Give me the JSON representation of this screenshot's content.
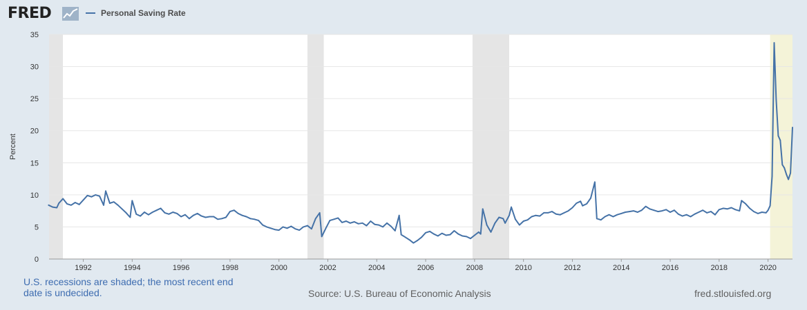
{
  "header": {
    "logo_text": "FRED",
    "logo_icon": "trend-line-icon",
    "legend_label": "Personal Saving Rate"
  },
  "footer": {
    "recession_note": "U.S. recessions are shaded; the most recent end date is undecided.",
    "source": "Source: U.S. Bureau of Economic Analysis",
    "site": "fred.stlouisfed.org"
  },
  "colors": {
    "series": "#4572a7",
    "background": "#e1e9f0",
    "plot": "#ffffff",
    "recession": "#e5e5e5",
    "recent_recession": "#f4f3d8",
    "grid": "#e6e6e6"
  },
  "chart_data": {
    "type": "line",
    "title": "",
    "xlabel": "",
    "ylabel": "Percent",
    "xlim": [
      1990.6,
      2021.0
    ],
    "ylim": [
      0,
      35
    ],
    "grid": true,
    "legend_position": "top-left",
    "x_ticks": [
      "1992",
      "1994",
      "1996",
      "1998",
      "2000",
      "2002",
      "2004",
      "2006",
      "2008",
      "2010",
      "2012",
      "2014",
      "2016",
      "2018",
      "2020"
    ],
    "y_ticks": [
      "0",
      "5",
      "10",
      "15",
      "20",
      "25",
      "30",
      "35"
    ],
    "recessions": [
      {
        "start": "1990-07",
        "end": "1991-03"
      },
      {
        "start": "2001-03",
        "end": "2001-11"
      },
      {
        "start": "2007-12",
        "end": "2009-06"
      },
      {
        "start": "2020-02",
        "end": ""
      }
    ],
    "series": [
      {
        "name": "Personal Saving Rate",
        "points": [
          [
            "1990-08",
            8.4
          ],
          [
            "1990-10",
            8.1
          ],
          [
            "1990-12",
            8.0
          ],
          [
            "1991-01",
            8.7
          ],
          [
            "1991-03",
            9.4
          ],
          [
            "1991-05",
            8.6
          ],
          [
            "1991-07",
            8.4
          ],
          [
            "1991-09",
            8.8
          ],
          [
            "1991-11",
            8.5
          ],
          [
            "1992-01",
            9.2
          ],
          [
            "1992-03",
            9.9
          ],
          [
            "1992-05",
            9.7
          ],
          [
            "1992-07",
            10.0
          ],
          [
            "1992-09",
            9.8
          ],
          [
            "1992-11",
            8.4
          ],
          [
            "1992-12",
            10.6
          ],
          [
            "1993-02",
            8.7
          ],
          [
            "1993-04",
            8.9
          ],
          [
            "1993-06",
            8.4
          ],
          [
            "1993-08",
            7.8
          ],
          [
            "1993-10",
            7.2
          ],
          [
            "1993-12",
            6.5
          ],
          [
            "1994-01",
            9.1
          ],
          [
            "1994-03",
            7.0
          ],
          [
            "1994-05",
            6.7
          ],
          [
            "1994-07",
            7.3
          ],
          [
            "1994-09",
            6.9
          ],
          [
            "1994-11",
            7.3
          ],
          [
            "1995-01",
            7.6
          ],
          [
            "1995-03",
            7.9
          ],
          [
            "1995-05",
            7.2
          ],
          [
            "1995-07",
            7.0
          ],
          [
            "1995-09",
            7.3
          ],
          [
            "1995-11",
            7.1
          ],
          [
            "1996-01",
            6.6
          ],
          [
            "1996-03",
            6.9
          ],
          [
            "1996-05",
            6.3
          ],
          [
            "1996-07",
            6.8
          ],
          [
            "1996-09",
            7.1
          ],
          [
            "1996-11",
            6.7
          ],
          [
            "1997-01",
            6.5
          ],
          [
            "1997-03",
            6.6
          ],
          [
            "1997-05",
            6.6
          ],
          [
            "1997-07",
            6.2
          ],
          [
            "1997-09",
            6.3
          ],
          [
            "1997-11",
            6.5
          ],
          [
            "1998-01",
            7.4
          ],
          [
            "1998-03",
            7.6
          ],
          [
            "1998-05",
            7.1
          ],
          [
            "1998-07",
            6.8
          ],
          [
            "1998-09",
            6.6
          ],
          [
            "1998-11",
            6.3
          ],
          [
            "1999-01",
            6.2
          ],
          [
            "1999-03",
            6.0
          ],
          [
            "1999-05",
            5.3
          ],
          [
            "1999-07",
            5.0
          ],
          [
            "1999-09",
            4.8
          ],
          [
            "1999-11",
            4.6
          ],
          [
            "2000-01",
            4.5
          ],
          [
            "2000-03",
            5.0
          ],
          [
            "2000-05",
            4.8
          ],
          [
            "2000-07",
            5.1
          ],
          [
            "2000-09",
            4.7
          ],
          [
            "2000-11",
            4.5
          ],
          [
            "2001-01",
            5.0
          ],
          [
            "2001-03",
            5.2
          ],
          [
            "2001-05",
            4.7
          ],
          [
            "2001-07",
            6.3
          ],
          [
            "2001-09",
            7.2
          ],
          [
            "2001-10",
            3.5
          ],
          [
            "2001-12",
            4.8
          ],
          [
            "2002-02",
            6.0
          ],
          [
            "2002-04",
            6.2
          ],
          [
            "2002-06",
            6.4
          ],
          [
            "2002-08",
            5.7
          ],
          [
            "2002-10",
            5.9
          ],
          [
            "2002-12",
            5.6
          ],
          [
            "2003-02",
            5.8
          ],
          [
            "2003-04",
            5.5
          ],
          [
            "2003-06",
            5.6
          ],
          [
            "2003-08",
            5.2
          ],
          [
            "2003-10",
            5.9
          ],
          [
            "2003-12",
            5.4
          ],
          [
            "2004-02",
            5.3
          ],
          [
            "2004-04",
            5.0
          ],
          [
            "2004-06",
            5.6
          ],
          [
            "2004-08",
            5.1
          ],
          [
            "2004-10",
            4.4
          ],
          [
            "2004-12",
            6.8
          ],
          [
            "2005-01",
            3.8
          ],
          [
            "2005-03",
            3.4
          ],
          [
            "2005-05",
            3.0
          ],
          [
            "2005-07",
            2.5
          ],
          [
            "2005-09",
            2.9
          ],
          [
            "2005-11",
            3.4
          ],
          [
            "2006-01",
            4.1
          ],
          [
            "2006-03",
            4.3
          ],
          [
            "2006-05",
            3.9
          ],
          [
            "2006-07",
            3.6
          ],
          [
            "2006-09",
            4.0
          ],
          [
            "2006-11",
            3.7
          ],
          [
            "2007-01",
            3.8
          ],
          [
            "2007-03",
            4.4
          ],
          [
            "2007-05",
            3.9
          ],
          [
            "2007-07",
            3.6
          ],
          [
            "2007-09",
            3.5
          ],
          [
            "2007-11",
            3.2
          ],
          [
            "2008-01",
            3.7
          ],
          [
            "2008-03",
            4.2
          ],
          [
            "2008-04",
            3.9
          ],
          [
            "2008-05",
            7.8
          ],
          [
            "2008-07",
            5.3
          ],
          [
            "2008-09",
            4.2
          ],
          [
            "2008-11",
            5.6
          ],
          [
            "2009-01",
            6.5
          ],
          [
            "2009-03",
            6.3
          ],
          [
            "2009-04",
            5.6
          ],
          [
            "2009-06",
            6.8
          ],
          [
            "2009-07",
            8.1
          ],
          [
            "2009-09",
            6.2
          ],
          [
            "2009-11",
            5.3
          ],
          [
            "2010-01",
            5.9
          ],
          [
            "2010-03",
            6.1
          ],
          [
            "2010-05",
            6.6
          ],
          [
            "2010-07",
            6.8
          ],
          [
            "2010-09",
            6.7
          ],
          [
            "2010-11",
            7.2
          ],
          [
            "2011-01",
            7.2
          ],
          [
            "2011-03",
            7.4
          ],
          [
            "2011-05",
            7.0
          ],
          [
            "2011-07",
            6.9
          ],
          [
            "2011-09",
            7.2
          ],
          [
            "2011-11",
            7.5
          ],
          [
            "2012-01",
            8.0
          ],
          [
            "2012-03",
            8.7
          ],
          [
            "2012-05",
            9.0
          ],
          [
            "2012-06",
            8.3
          ],
          [
            "2012-08",
            8.6
          ],
          [
            "2012-10",
            9.5
          ],
          [
            "2012-12",
            12.0
          ],
          [
            "2013-01",
            6.3
          ],
          [
            "2013-03",
            6.1
          ],
          [
            "2013-05",
            6.6
          ],
          [
            "2013-07",
            6.9
          ],
          [
            "2013-09",
            6.6
          ],
          [
            "2013-11",
            6.9
          ],
          [
            "2014-01",
            7.1
          ],
          [
            "2014-03",
            7.3
          ],
          [
            "2014-05",
            7.4
          ],
          [
            "2014-07",
            7.5
          ],
          [
            "2014-09",
            7.3
          ],
          [
            "2014-11",
            7.6
          ],
          [
            "2015-01",
            8.2
          ],
          [
            "2015-03",
            7.8
          ],
          [
            "2015-05",
            7.6
          ],
          [
            "2015-07",
            7.4
          ],
          [
            "2015-09",
            7.5
          ],
          [
            "2015-11",
            7.7
          ],
          [
            "2016-01",
            7.3
          ],
          [
            "2016-03",
            7.6
          ],
          [
            "2016-05",
            7.0
          ],
          [
            "2016-07",
            6.7
          ],
          [
            "2016-09",
            6.9
          ],
          [
            "2016-11",
            6.6
          ],
          [
            "2017-01",
            7.0
          ],
          [
            "2017-03",
            7.3
          ],
          [
            "2017-05",
            7.6
          ],
          [
            "2017-07",
            7.2
          ],
          [
            "2017-09",
            7.4
          ],
          [
            "2017-11",
            6.9
          ],
          [
            "2018-01",
            7.7
          ],
          [
            "2018-03",
            7.9
          ],
          [
            "2018-05",
            7.8
          ],
          [
            "2018-07",
            8.0
          ],
          [
            "2018-09",
            7.7
          ],
          [
            "2018-11",
            7.5
          ],
          [
            "2018-12",
            9.1
          ],
          [
            "2019-02",
            8.6
          ],
          [
            "2019-04",
            7.9
          ],
          [
            "2019-06",
            7.4
          ],
          [
            "2019-08",
            7.1
          ],
          [
            "2019-10",
            7.3
          ],
          [
            "2019-12",
            7.2
          ],
          [
            "2020-01",
            7.6
          ],
          [
            "2020-02",
            8.3
          ],
          [
            "2020-03",
            12.9
          ],
          [
            "2020-04",
            33.7
          ],
          [
            "2020-05",
            24.8
          ],
          [
            "2020-06",
            19.2
          ],
          [
            "2020-07",
            18.5
          ],
          [
            "2020-08",
            14.7
          ],
          [
            "2020-09",
            14.2
          ],
          [
            "2020-10",
            13.2
          ],
          [
            "2020-11",
            12.4
          ],
          [
            "2020-12",
            13.4
          ],
          [
            "2021-01",
            20.5
          ]
        ]
      }
    ]
  }
}
